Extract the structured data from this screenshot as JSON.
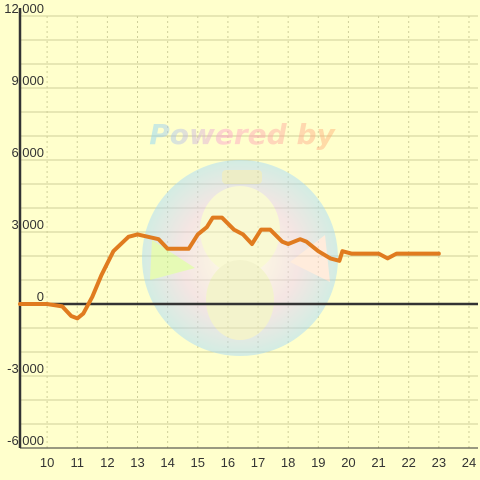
{
  "colors": {
    "background": "#ffffcc",
    "grid": "#cfcf9a",
    "axis": "#333333",
    "line": "#e07b1f",
    "text": "#333333"
  },
  "watermark": {
    "text": "Powered by"
  },
  "chart_data": {
    "type": "line",
    "title": "",
    "xlabel": "",
    "ylabel": "",
    "xlim": [
      9.1,
      24.3
    ],
    "ylim": [
      -6000,
      12000
    ],
    "x_ticks": [
      10,
      11,
      12,
      13,
      14,
      15,
      16,
      17,
      18,
      19,
      20,
      21,
      22,
      23,
      24
    ],
    "x_tick_labels": [
      "10",
      "11",
      "12",
      "13",
      "14",
      "15",
      "16",
      "17",
      "18",
      "19",
      "20",
      "21",
      "22",
      "23",
      "24"
    ],
    "y_ticks": [
      12000,
      9000,
      6000,
      3000,
      0,
      -3000,
      -6000
    ],
    "y_tick_labels": [
      "12,000",
      "9,000",
      "6,000",
      "3,000",
      "0",
      "-3,000",
      "-6,000"
    ],
    "grid": true,
    "legend": "none",
    "series": [
      {
        "points": [
          [
            9.1,
            0
          ],
          [
            10.0,
            0
          ],
          [
            10.5,
            -100
          ],
          [
            10.8,
            -500
          ],
          [
            11.0,
            -600
          ],
          [
            11.2,
            -400
          ],
          [
            11.5,
            300
          ],
          [
            11.8,
            1200
          ],
          [
            12.2,
            2200
          ],
          [
            12.7,
            2800
          ],
          [
            13.0,
            2900
          ],
          [
            13.7,
            2700
          ],
          [
            14.0,
            2300
          ],
          [
            14.7,
            2300
          ],
          [
            15.0,
            2900
          ],
          [
            15.3,
            3200
          ],
          [
            15.5,
            3600
          ],
          [
            15.8,
            3600
          ],
          [
            16.2,
            3100
          ],
          [
            16.5,
            2900
          ],
          [
            16.8,
            2500
          ],
          [
            17.1,
            3100
          ],
          [
            17.4,
            3100
          ],
          [
            17.8,
            2600
          ],
          [
            18.0,
            2500
          ],
          [
            18.4,
            2700
          ],
          [
            18.6,
            2600
          ],
          [
            19.0,
            2200
          ],
          [
            19.4,
            1900
          ],
          [
            19.7,
            1800
          ],
          [
            19.8,
            2200
          ],
          [
            20.1,
            2100
          ],
          [
            21.0,
            2100
          ],
          [
            21.3,
            1900
          ],
          [
            21.6,
            2100
          ],
          [
            23.0,
            2100
          ]
        ]
      }
    ]
  }
}
